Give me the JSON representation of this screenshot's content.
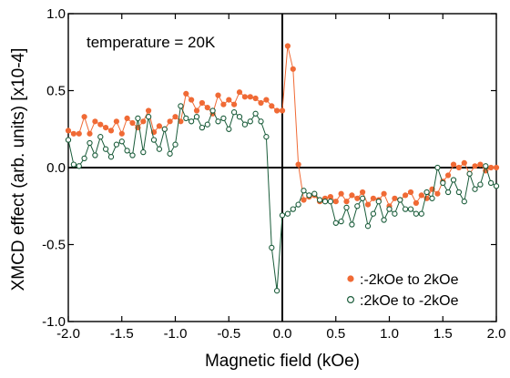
{
  "chart_data": {
    "type": "line",
    "title": "",
    "xlabel": "Magnetic field (kOe)",
    "ylabel": "XMCD effect (arb. units) [x10-4]",
    "xlim": [
      -2.0,
      2.0
    ],
    "ylim": [
      -1.0,
      1.0
    ],
    "x_ticks": [
      "-2.0",
      "-1.5",
      "-1.0",
      "-0.5",
      "0.0",
      "0.5",
      "1.0",
      "1.5",
      "2.0"
    ],
    "y_ticks": [
      "-1.0",
      "-0.5",
      "0.0",
      "0.5",
      "1.0"
    ],
    "annotation": "temperature = 20K",
    "grid": false,
    "legend_position": "bottom-right",
    "series": [
      {
        "name": ":-2kOe to 2kOe",
        "color": "#f06a35",
        "marker": "filled-circle",
        "x": [
          -2.0,
          -1.95,
          -1.9,
          -1.85,
          -1.8,
          -1.75,
          -1.7,
          -1.65,
          -1.6,
          -1.55,
          -1.5,
          -1.45,
          -1.4,
          -1.35,
          -1.3,
          -1.25,
          -1.2,
          -1.15,
          -1.1,
          -1.05,
          -1.0,
          -0.95,
          -0.9,
          -0.85,
          -0.8,
          -0.75,
          -0.7,
          -0.65,
          -0.6,
          -0.55,
          -0.5,
          -0.45,
          -0.4,
          -0.35,
          -0.3,
          -0.25,
          -0.2,
          -0.15,
          -0.1,
          -0.05,
          0.0,
          0.05,
          0.1,
          0.15,
          0.2,
          0.25,
          0.3,
          0.35,
          0.4,
          0.45,
          0.5,
          0.55,
          0.6,
          0.65,
          0.7,
          0.75,
          0.8,
          0.85,
          0.9,
          0.95,
          1.0,
          1.05,
          1.1,
          1.15,
          1.2,
          1.25,
          1.3,
          1.35,
          1.4,
          1.45,
          1.5,
          1.55,
          1.6,
          1.65,
          1.7,
          1.75,
          1.8,
          1.85,
          1.9,
          1.95,
          2.0
        ],
        "y": [
          0.24,
          0.22,
          0.22,
          0.33,
          0.22,
          0.3,
          0.28,
          0.26,
          0.24,
          0.3,
          0.22,
          0.32,
          0.29,
          0.26,
          0.3,
          0.37,
          0.23,
          0.27,
          0.25,
          0.3,
          0.33,
          0.3,
          0.48,
          0.44,
          0.37,
          0.42,
          0.39,
          0.35,
          0.47,
          0.41,
          0.44,
          0.41,
          0.49,
          0.46,
          0.46,
          0.45,
          0.42,
          0.44,
          0.4,
          0.37,
          0.37,
          0.79,
          0.64,
          0.02,
          -0.21,
          -0.19,
          -0.18,
          -0.22,
          -0.2,
          -0.19,
          -0.22,
          -0.17,
          -0.22,
          -0.18,
          -0.2,
          -0.16,
          -0.24,
          -0.2,
          -0.21,
          -0.17,
          -0.25,
          -0.2,
          -0.21,
          -0.18,
          -0.16,
          -0.23,
          -0.18,
          -0.2,
          -0.14,
          -0.17,
          -0.09,
          -0.05,
          0.02,
          0.0,
          0.03,
          -0.04,
          0.01,
          0.02,
          -0.02,
          0.0,
          0.0
        ]
      },
      {
        "name": ":2kOe to -2kOe",
        "color": "#1a5c3a",
        "marker": "open-circle",
        "x": [
          -2.0,
          -1.95,
          -1.9,
          -1.85,
          -1.8,
          -1.75,
          -1.7,
          -1.65,
          -1.6,
          -1.55,
          -1.5,
          -1.45,
          -1.4,
          -1.35,
          -1.3,
          -1.25,
          -1.2,
          -1.15,
          -1.1,
          -1.05,
          -1.0,
          -0.95,
          -0.9,
          -0.85,
          -0.8,
          -0.75,
          -0.7,
          -0.65,
          -0.6,
          -0.55,
          -0.5,
          -0.45,
          -0.4,
          -0.35,
          -0.3,
          -0.25,
          -0.2,
          -0.15,
          -0.1,
          -0.05,
          0.0,
          0.05,
          0.1,
          0.15,
          0.2,
          0.25,
          0.3,
          0.35,
          0.4,
          0.45,
          0.5,
          0.55,
          0.6,
          0.65,
          0.7,
          0.75,
          0.8,
          0.85,
          0.9,
          0.95,
          1.0,
          1.05,
          1.1,
          1.15,
          1.2,
          1.25,
          1.3,
          1.35,
          1.4,
          1.45,
          1.5,
          1.55,
          1.6,
          1.65,
          1.7,
          1.75,
          1.8,
          1.85,
          1.9,
          1.95,
          2.0
        ],
        "y": [
          0.18,
          0.02,
          0.01,
          0.06,
          0.16,
          0.08,
          0.2,
          0.12,
          0.07,
          0.15,
          0.17,
          0.11,
          0.08,
          0.32,
          0.1,
          0.33,
          0.18,
          0.12,
          0.25,
          0.09,
          0.15,
          0.4,
          0.32,
          0.3,
          0.33,
          0.26,
          0.28,
          0.37,
          0.3,
          0.32,
          0.25,
          0.36,
          0.33,
          0.28,
          0.3,
          0.35,
          0.3,
          0.2,
          -0.52,
          -0.8,
          -0.31,
          -0.3,
          -0.27,
          -0.24,
          -0.15,
          -0.18,
          -0.17,
          -0.21,
          -0.22,
          -0.22,
          -0.36,
          -0.35,
          -0.26,
          -0.37,
          -0.25,
          -0.2,
          -0.38,
          -0.3,
          -0.22,
          -0.34,
          -0.27,
          -0.3,
          -0.21,
          -0.27,
          -0.27,
          -0.3,
          -0.3,
          -0.16,
          -0.2,
          0.0,
          -0.1,
          -0.16,
          -0.08,
          -0.16,
          -0.22,
          -0.04,
          -0.14,
          -0.11,
          0.01,
          -0.1,
          -0.12
        ]
      }
    ]
  }
}
